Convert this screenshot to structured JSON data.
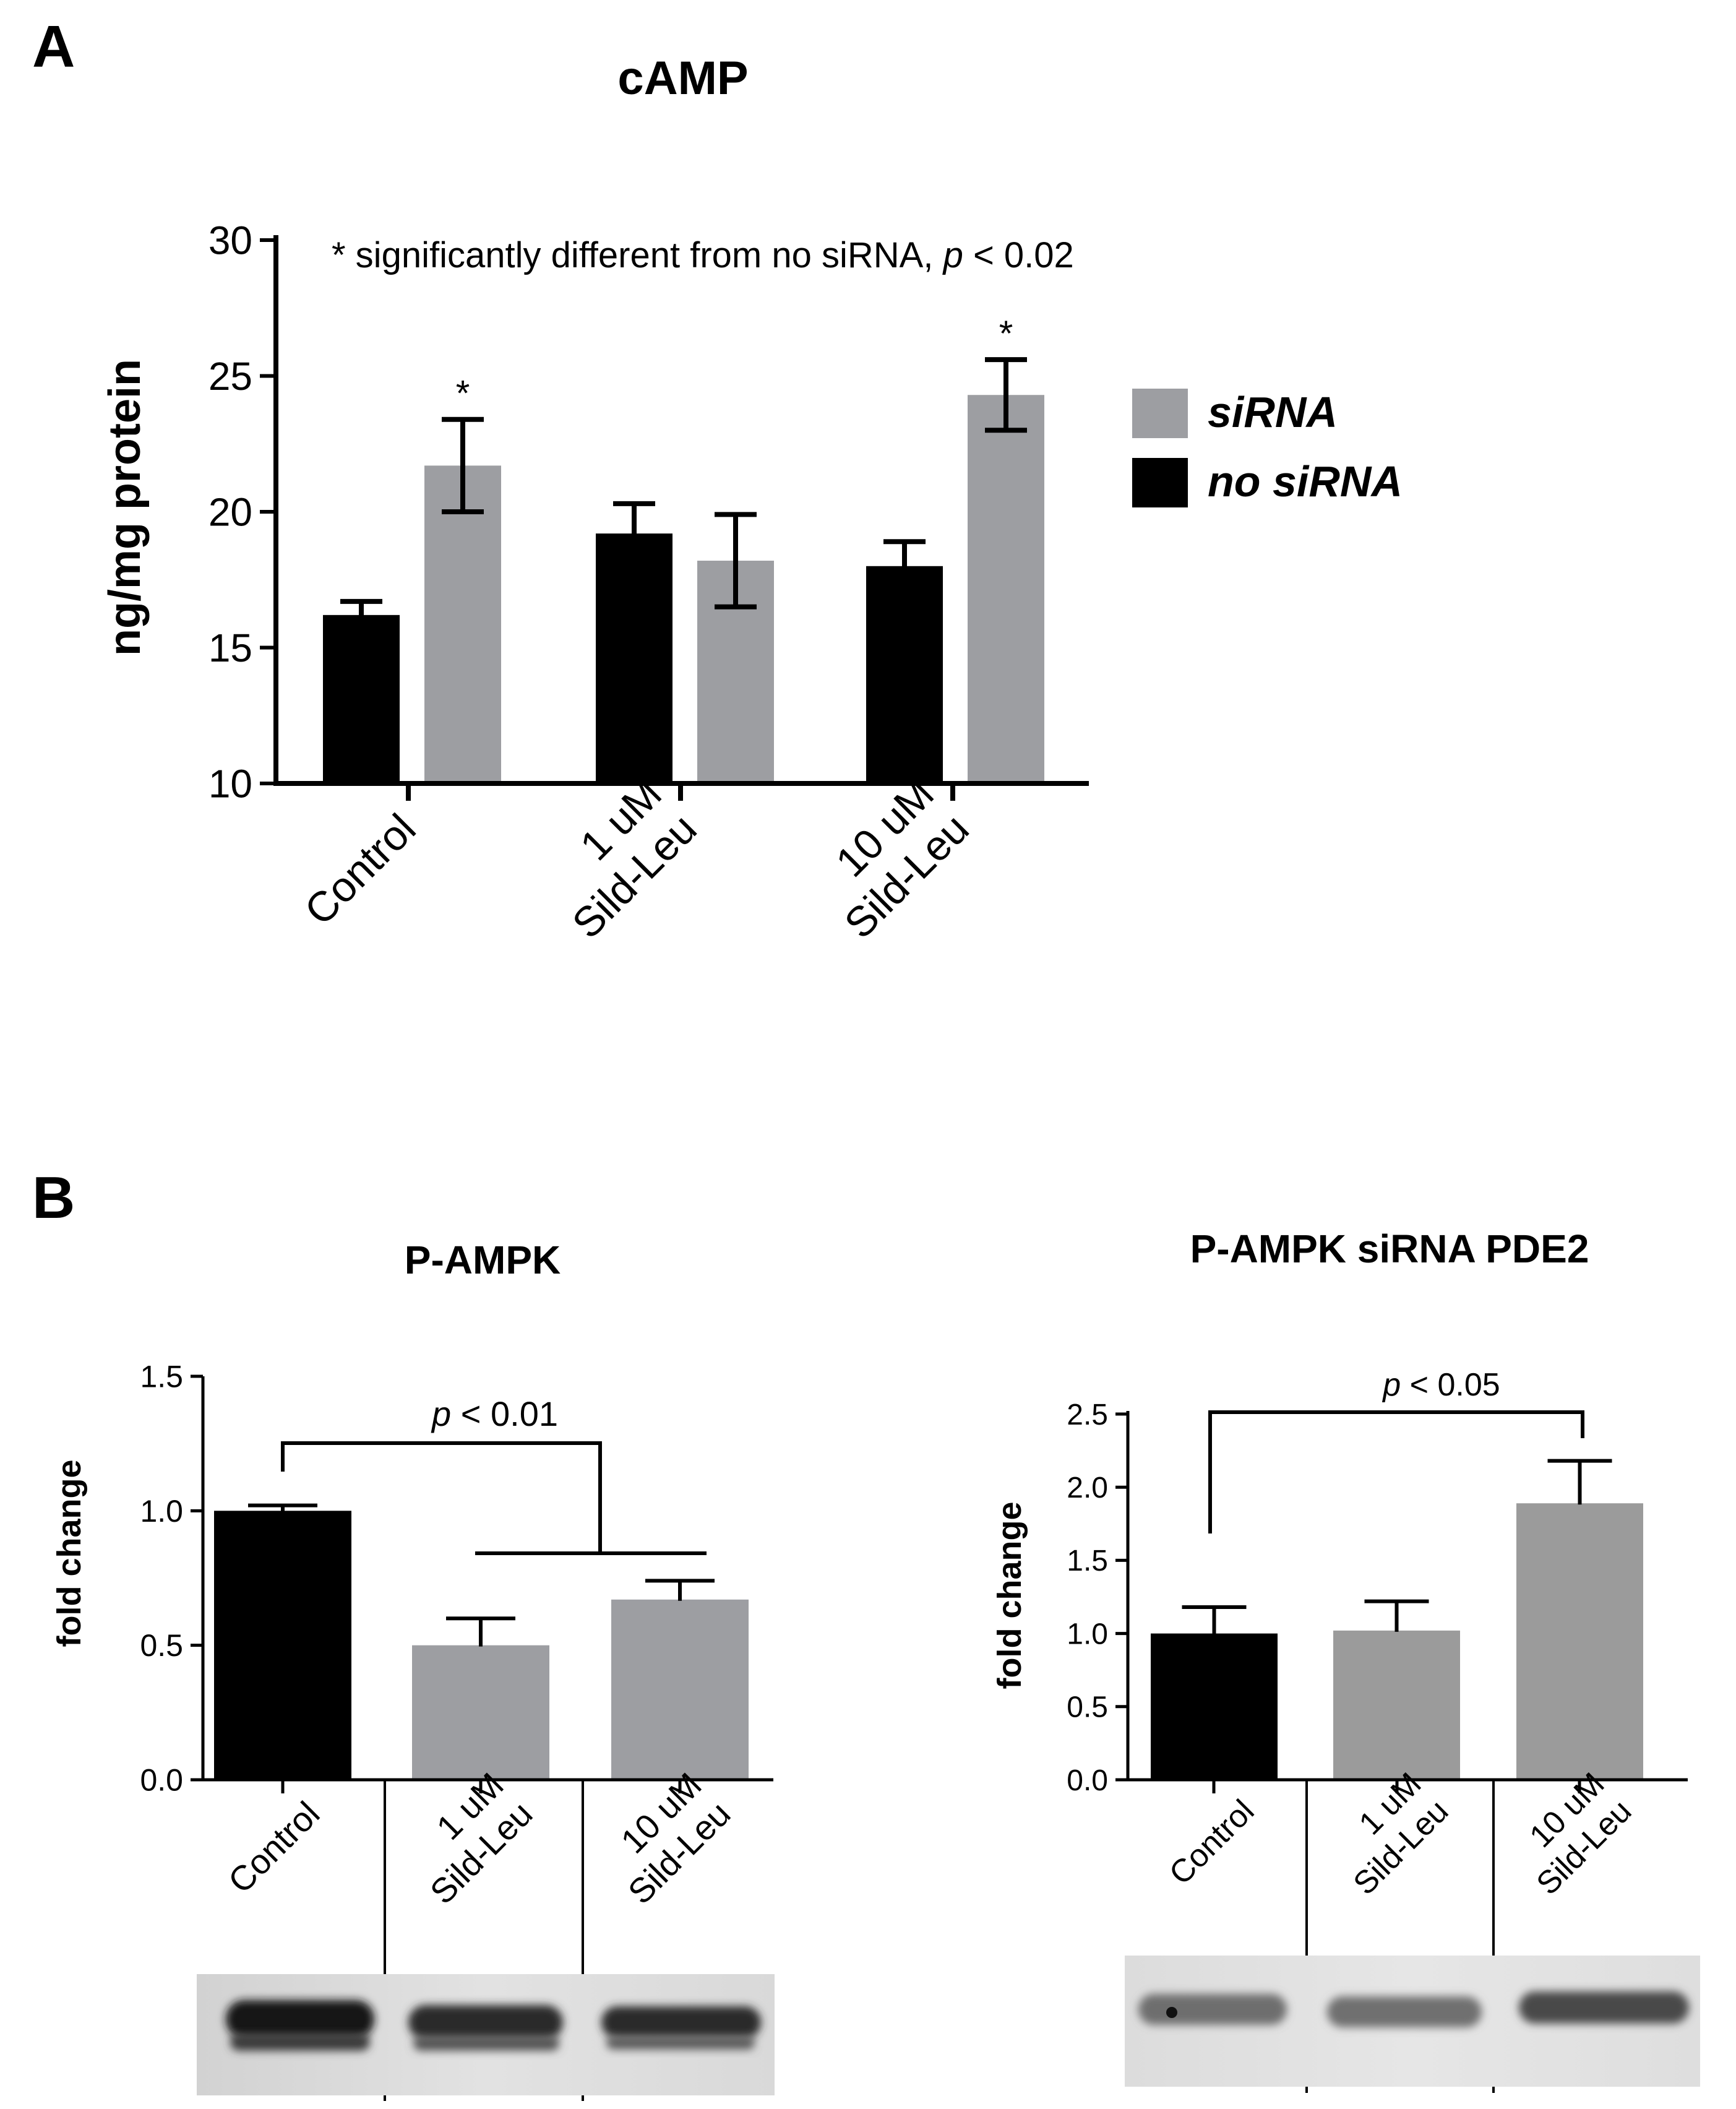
{
  "colors": {
    "black": "#000000",
    "gray": "#9d9ea2",
    "gray2": "#9b9b9b"
  },
  "panel_labels": {
    "a": "A",
    "b": "B"
  },
  "chart_data": [
    {
      "id": "camp",
      "type": "bar",
      "title": "cAMP",
      "ylabel": "ng/mg protein",
      "ylim": [
        10,
        30
      ],
      "yticks": [
        "10",
        "15",
        "20",
        "25",
        "30"
      ],
      "note": {
        "prefix": "* significantly different from no siRNA, ",
        "p": "p",
        "suffix": " < 0.02"
      },
      "categories": [
        [
          "Control"
        ],
        [
          "1 uM",
          "Sild-Leu"
        ],
        [
          "10 uM",
          "Sild-Leu"
        ]
      ],
      "series": [
        {
          "name": "no siRNA",
          "color": "#000000",
          "values": [
            16.2,
            19.2,
            18.0
          ],
          "errors": [
            0.5,
            1.1,
            0.9
          ],
          "marks": [
            "",
            "",
            ""
          ]
        },
        {
          "name": "siRNA",
          "color": "#9d9ea2",
          "values": [
            21.7,
            18.2,
            24.3
          ],
          "errors": [
            1.7,
            1.7,
            1.3
          ],
          "marks": [
            "*",
            "",
            "*"
          ]
        }
      ],
      "legend": [
        {
          "label": "siRNA",
          "color": "#9d9ea2"
        },
        {
          "label": "no siRNA",
          "color": "#000000"
        }
      ]
    },
    {
      "id": "pampk",
      "type": "bar",
      "title": "P-AMPK",
      "ylabel": "fold change",
      "ylim": [
        0,
        1.5
      ],
      "yticks": [
        "0.0",
        "0.5",
        "1.0",
        "1.5"
      ],
      "categories": [
        [
          "Control"
        ],
        [
          "1 uM",
          "Sild-Leu"
        ],
        [
          "10 uM",
          "Sild-Leu"
        ]
      ],
      "values": [
        1.0,
        0.5,
        0.67
      ],
      "errors": [
        0.02,
        0.1,
        0.07
      ],
      "colors": [
        "#000000",
        "#9d9ea2",
        "#9d9ea2"
      ],
      "significance": {
        "p": "p",
        "text": " < 0.01"
      }
    },
    {
      "id": "pampk-sirna",
      "type": "bar",
      "title": "P-AMPK siRNA PDE2",
      "ylabel": "fold change",
      "ylim": [
        0,
        2.5
      ],
      "yticks": [
        "0.0",
        "0.5",
        "1.0",
        "1.5",
        "2.0",
        "2.5"
      ],
      "categories": [
        [
          "Control"
        ],
        [
          "1 uM",
          "Sild-Leu"
        ],
        [
          "10 uM",
          "Sild-Leu"
        ]
      ],
      "values": [
        1.0,
        1.02,
        1.89
      ],
      "errors": [
        0.18,
        0.2,
        0.29
      ],
      "colors": [
        "#000000",
        "#9b9b9b",
        "#9b9b9b"
      ],
      "significance": {
        "p": "p",
        "text": " < 0.05"
      }
    }
  ]
}
